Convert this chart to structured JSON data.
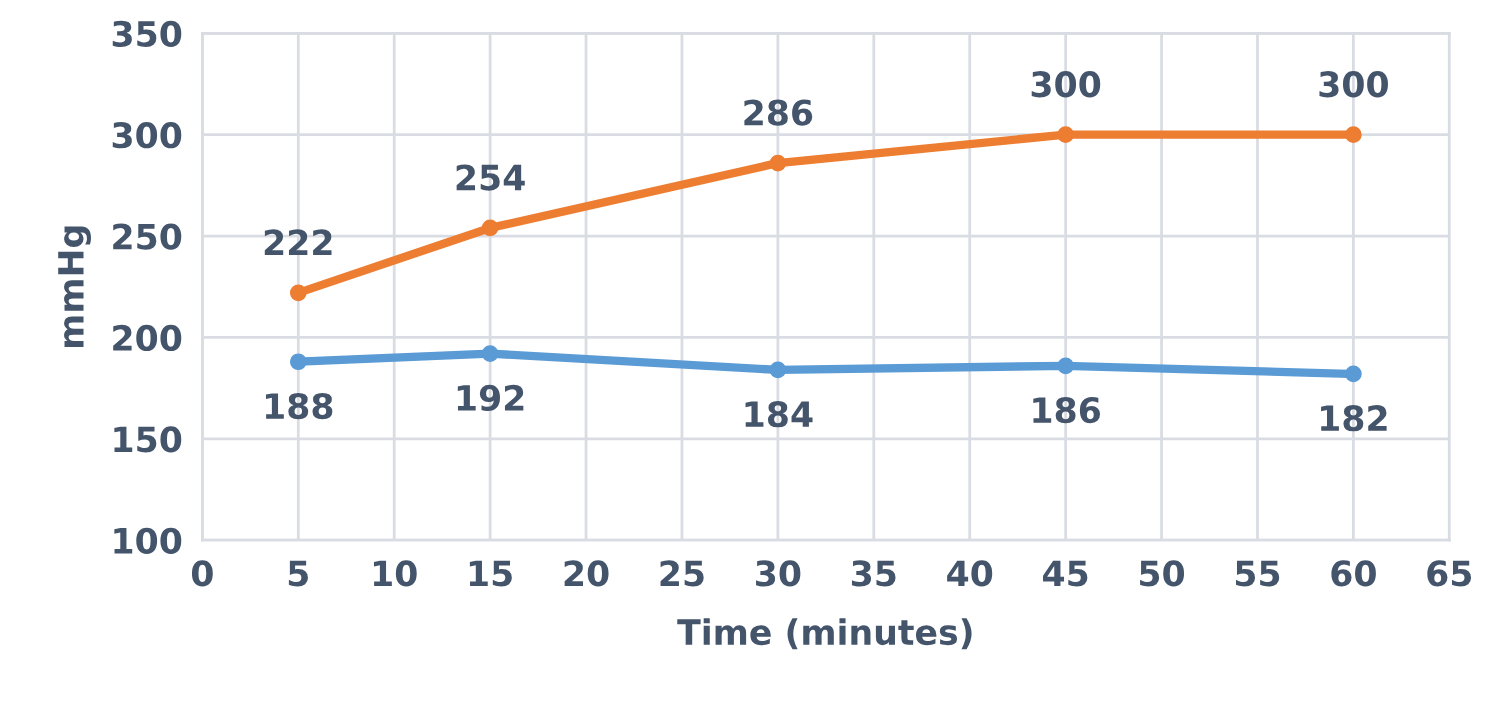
{
  "chart_data": {
    "type": "line",
    "xlabel": "Time (minutes)",
    "ylabel": "mmHg",
    "x": [
      5,
      15,
      30,
      45,
      60
    ],
    "series": [
      {
        "color": "#5b9bd5",
        "values": [
          188,
          192,
          184,
          186,
          182
        ]
      },
      {
        "color": "#ed7d31",
        "values": [
          222,
          254,
          286,
          300,
          300
        ]
      }
    ],
    "xlim": [
      0,
      65
    ],
    "xticks": [
      0,
      5,
      10,
      15,
      20,
      25,
      30,
      35,
      40,
      45,
      50,
      55,
      60,
      65
    ],
    "ylim": [
      100,
      350
    ],
    "yticks": [
      100,
      150,
      200,
      250,
      300,
      350
    ],
    "grid": true,
    "marker": "circle",
    "line_style": "solid",
    "data_labels": true,
    "legend": false
  }
}
